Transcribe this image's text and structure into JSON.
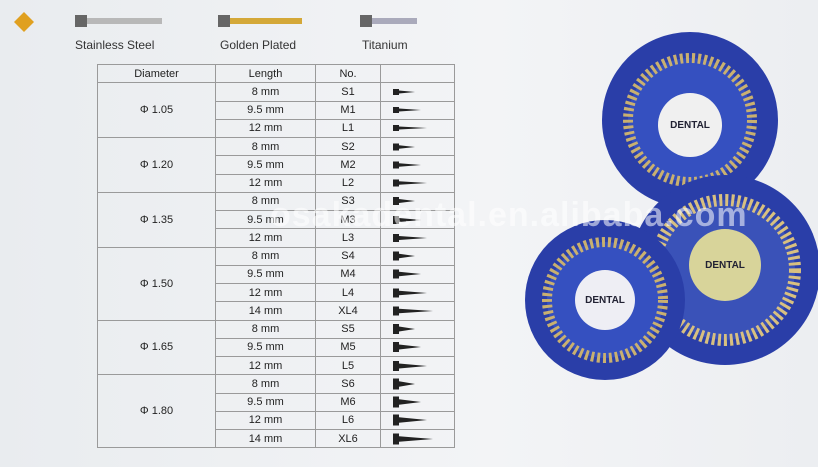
{
  "legend": [
    "Stainless Steel",
    "Golden Plated",
    "Titanium"
  ],
  "table": {
    "headers": [
      "Diameter",
      "Length",
      "No."
    ],
    "groups": [
      {
        "diameter": "Φ 1.05",
        "rows": [
          [
            "8 mm",
            "S1"
          ],
          [
            "9.5 mm",
            "M1"
          ],
          [
            "12 mm",
            "L1"
          ]
        ]
      },
      {
        "diameter": "Φ 1.20",
        "rows": [
          [
            "8 mm",
            "S2"
          ],
          [
            "9.5 mm",
            "M2"
          ],
          [
            "12 mm",
            "L2"
          ]
        ]
      },
      {
        "diameter": "Φ 1.35",
        "rows": [
          [
            "8 mm",
            "S3"
          ],
          [
            "9.5 mm",
            "M3"
          ],
          [
            "12 mm",
            "L3"
          ]
        ]
      },
      {
        "diameter": "Φ 1.50",
        "rows": [
          [
            "8 mm",
            "S4"
          ],
          [
            "9.5 mm",
            "M4"
          ],
          [
            "12 mm",
            "L4"
          ],
          [
            "14 mm",
            "XL4"
          ]
        ]
      },
      {
        "diameter": "Φ 1.65",
        "rows": [
          [
            "8 mm",
            "S5"
          ],
          [
            "9.5 mm",
            "M5"
          ],
          [
            "12 mm",
            "L5"
          ]
        ]
      },
      {
        "diameter": "Φ 1.80",
        "rows": [
          [
            "8 mm",
            "S6"
          ],
          [
            "9.5 mm",
            "M6"
          ],
          [
            "12 mm",
            "L6"
          ],
          [
            "14 mm",
            "XL6"
          ]
        ]
      }
    ]
  },
  "watermark": "osakadental.en.alibaba.com",
  "disc_label": "DENTAL"
}
